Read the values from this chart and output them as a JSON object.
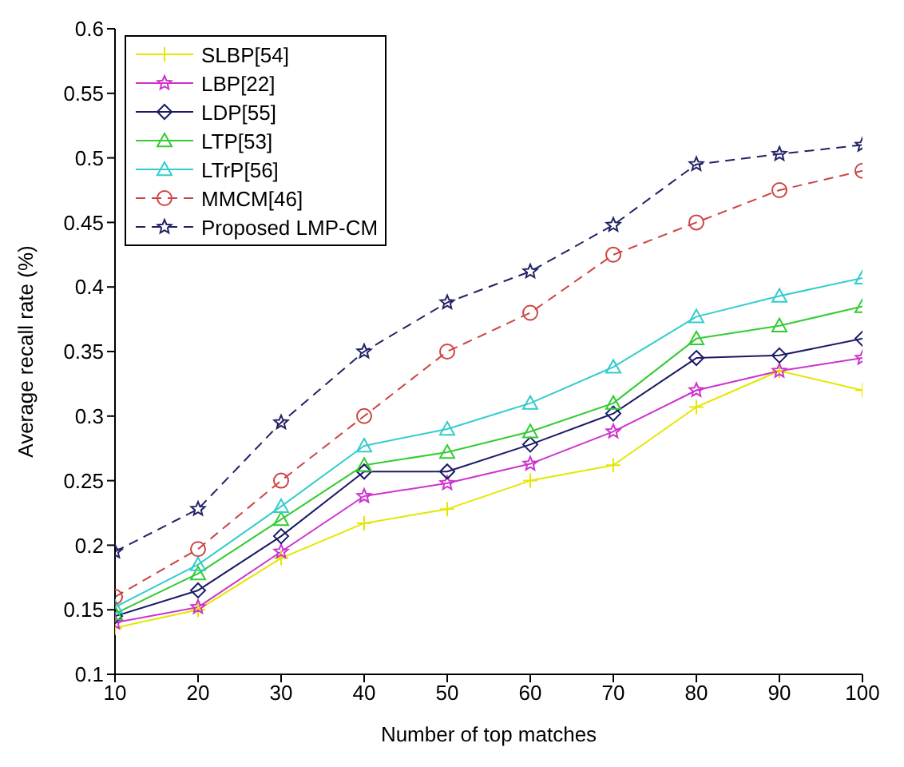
{
  "chart_data": {
    "type": "line",
    "xlabel": "Number of top matches",
    "ylabel": "Average recall rate (%)",
    "x": [
      10,
      20,
      30,
      40,
      50,
      60,
      70,
      80,
      90,
      100
    ],
    "xlim": [
      10,
      100
    ],
    "xticks": [
      10,
      20,
      30,
      40,
      50,
      60,
      70,
      80,
      90,
      100
    ],
    "ylim": [
      0.1,
      0.6
    ],
    "yticks": [
      0.1,
      0.15,
      0.2,
      0.25,
      0.3,
      0.35,
      0.4,
      0.45,
      0.5,
      0.55,
      0.6
    ],
    "legend": "top left",
    "series": [
      {
        "name": "SLBP[54]",
        "color": "#e6e600",
        "marker": "cross",
        "line_style": "solid",
        "values": [
          0.136,
          0.15,
          0.19,
          0.217,
          0.228,
          0.25,
          0.262,
          0.307,
          0.335,
          0.32
        ]
      },
      {
        "name": "LBP[22]",
        "color": "#cc33cc",
        "marker": "star",
        "line_style": "solid",
        "values": [
          0.14,
          0.152,
          0.195,
          0.238,
          0.248,
          0.263,
          0.288,
          0.32,
          0.335,
          0.345
        ]
      },
      {
        "name": "LDP[55]",
        "color": "#1a1a66",
        "marker": "diamond",
        "line_style": "solid",
        "values": [
          0.145,
          0.165,
          0.207,
          0.257,
          0.257,
          0.278,
          0.302,
          0.345,
          0.347,
          0.36
        ]
      },
      {
        "name": "LTP[53]",
        "color": "#33cc33",
        "marker": "triangle",
        "line_style": "solid",
        "values": [
          0.147,
          0.178,
          0.22,
          0.262,
          0.272,
          0.288,
          0.31,
          0.36,
          0.37,
          0.385
        ]
      },
      {
        "name": "LTrP[56]",
        "color": "#33cccc",
        "marker": "triangle",
        "line_style": "solid",
        "values": [
          0.152,
          0.185,
          0.23,
          0.277,
          0.29,
          0.31,
          0.338,
          0.377,
          0.393,
          0.407
        ]
      },
      {
        "name": "MMCM[46]",
        "color": "#cc4444",
        "marker": "circle",
        "line_style": "dashed",
        "values": [
          0.16,
          0.197,
          0.25,
          0.3,
          0.35,
          0.38,
          0.425,
          0.45,
          0.475,
          0.49
        ]
      },
      {
        "name": "Proposed LMP-CM",
        "color": "#222266",
        "marker": "star",
        "line_style": "dashed",
        "values": [
          0.195,
          0.228,
          0.295,
          0.35,
          0.388,
          0.412,
          0.448,
          0.495,
          0.503,
          0.51
        ]
      }
    ]
  }
}
